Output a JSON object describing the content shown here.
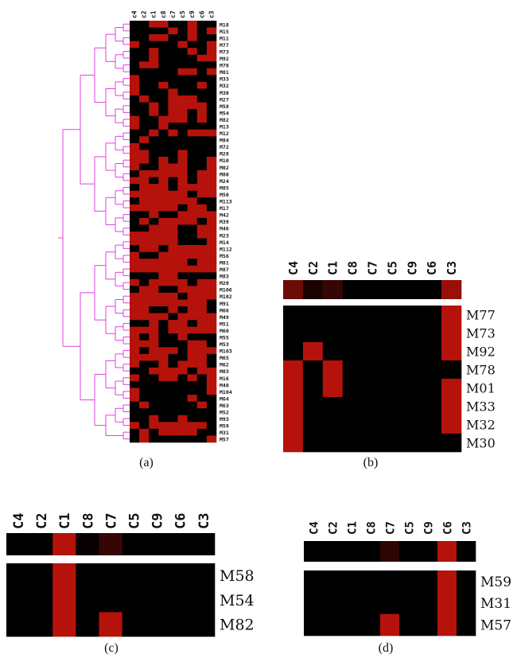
{
  "figure": {
    "captions": [
      "(a)",
      "(b)",
      "(c)",
      "(d)"
    ]
  },
  "colors": {
    "cell_on": "#b5120c",
    "cell_off": "#000000",
    "dendrogram": "#e040e0"
  },
  "panel_a": {
    "columns": [
      "c4",
      "c2",
      "c1",
      "c8",
      "c7",
      "c5",
      "c9",
      "c6",
      "c3"
    ],
    "rows": [
      "M18",
      "M15",
      "M11",
      "M77",
      "M73",
      "M92",
      "M78",
      "M01",
      "M33",
      "M32",
      "M30",
      "M27",
      "M58",
      "M54",
      "M82",
      "M13",
      "M12",
      "M84",
      "M72",
      "M28",
      "M10",
      "M02",
      "M80",
      "M24",
      "M85",
      "M50",
      "M113",
      "M17",
      "M42",
      "M39",
      "M46",
      "M23",
      "M14",
      "M112",
      "M56",
      "M81",
      "M87",
      "M83",
      "M20",
      "M106",
      "M102",
      "M91",
      "M66",
      "M49",
      "M51",
      "M60",
      "M55",
      "M53",
      "M103",
      "M65",
      "M62",
      "M03",
      "M16",
      "M40",
      "M104",
      "M64",
      "M63",
      "M52",
      "M93",
      "M59",
      "M31",
      "M57"
    ]
  },
  "panel_b": {
    "columns": [
      "C4",
      "C2",
      "C1",
      "C8",
      "C7",
      "C5",
      "C9",
      "C6",
      "C3"
    ],
    "summary": [
      0.6,
      0.15,
      0.3,
      0,
      0,
      0,
      0,
      0,
      0.85
    ],
    "rows": [
      "M77",
      "M73",
      "M92",
      "M78",
      "M01",
      "M33",
      "M32",
      "M30"
    ],
    "matrix": [
      [
        0,
        0,
        0,
        0,
        0,
        0,
        0,
        0,
        1
      ],
      [
        0,
        0,
        0,
        0,
        0,
        0,
        0,
        0,
        1
      ],
      [
        0,
        1,
        0,
        0,
        0,
        0,
        0,
        0,
        1
      ],
      [
        1,
        0,
        1,
        0,
        0,
        0,
        0,
        0,
        0
      ],
      [
        1,
        0,
        1,
        0,
        0,
        0,
        0,
        0,
        1
      ],
      [
        1,
        0,
        0,
        0,
        0,
        0,
        0,
        0,
        1
      ],
      [
        1,
        0,
        0,
        0,
        0,
        0,
        0,
        0,
        1
      ],
      [
        1,
        0,
        0,
        0,
        0,
        0,
        0,
        0,
        0
      ]
    ]
  },
  "panel_c": {
    "columns": [
      "C4",
      "C2",
      "C1",
      "C8",
      "C7",
      "C5",
      "C9",
      "C6",
      "C3"
    ],
    "summary": [
      0,
      0,
      1,
      0.05,
      0.3,
      0,
      0,
      0,
      0
    ],
    "rows": [
      "M58",
      "M54",
      "M82"
    ],
    "matrix": [
      [
        0,
        0,
        1,
        0,
        0,
        0,
        0,
        0,
        0
      ],
      [
        0,
        0,
        1,
        0,
        0,
        0,
        0,
        0,
        0
      ],
      [
        0,
        0,
        1,
        0,
        1,
        0,
        0,
        0,
        0
      ]
    ]
  },
  "panel_d": {
    "columns": [
      "C4",
      "C2",
      "C1",
      "C8",
      "C7",
      "C5",
      "C9",
      "C6",
      "C3"
    ],
    "summary": [
      0,
      0,
      0,
      0,
      0.25,
      0,
      0,
      1,
      0
    ],
    "rows": [
      "M59",
      "M31",
      "M57"
    ],
    "matrix": [
      [
        0,
        0,
        0,
        0,
        0,
        0,
        0,
        1,
        0
      ],
      [
        0,
        0,
        0,
        0,
        0,
        0,
        0,
        1,
        0
      ],
      [
        0,
        0,
        0,
        0,
        1,
        0,
        0,
        1,
        0
      ]
    ]
  }
}
